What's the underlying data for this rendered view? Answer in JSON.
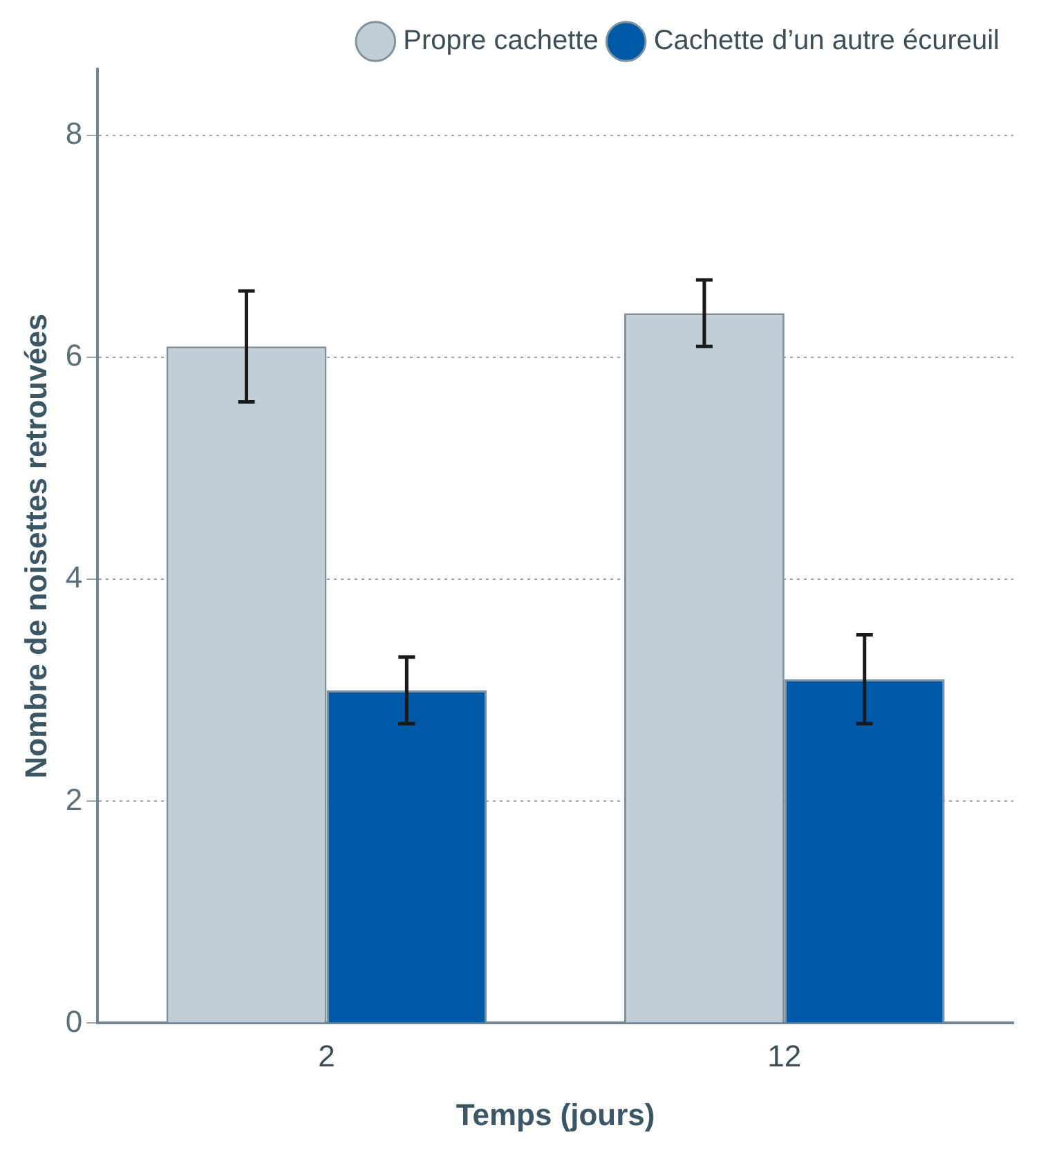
{
  "chart_data": {
    "type": "bar",
    "xlabel": "Temps (jours)",
    "ylabel": "Nombre de noisettes retrouvées",
    "categories": [
      "2",
      "12"
    ],
    "series": [
      {
        "name": "Propre cachette",
        "color": "#c1ced6",
        "values": [
          6.1,
          6.4
        ],
        "errors": [
          [
            5.6,
            6.6
          ],
          [
            6.1,
            6.7
          ]
        ]
      },
      {
        "name": "Cachette d’un autre écureuil",
        "color": "#0059a6",
        "values": [
          3.0,
          3.1
        ],
        "errors": [
          [
            2.7,
            3.3
          ],
          [
            2.7,
            3.5
          ]
        ]
      }
    ],
    "ylim": [
      0,
      8.6
    ],
    "yticks": [
      0,
      2,
      4,
      6,
      8
    ],
    "grid": "y",
    "legend": "top right"
  }
}
